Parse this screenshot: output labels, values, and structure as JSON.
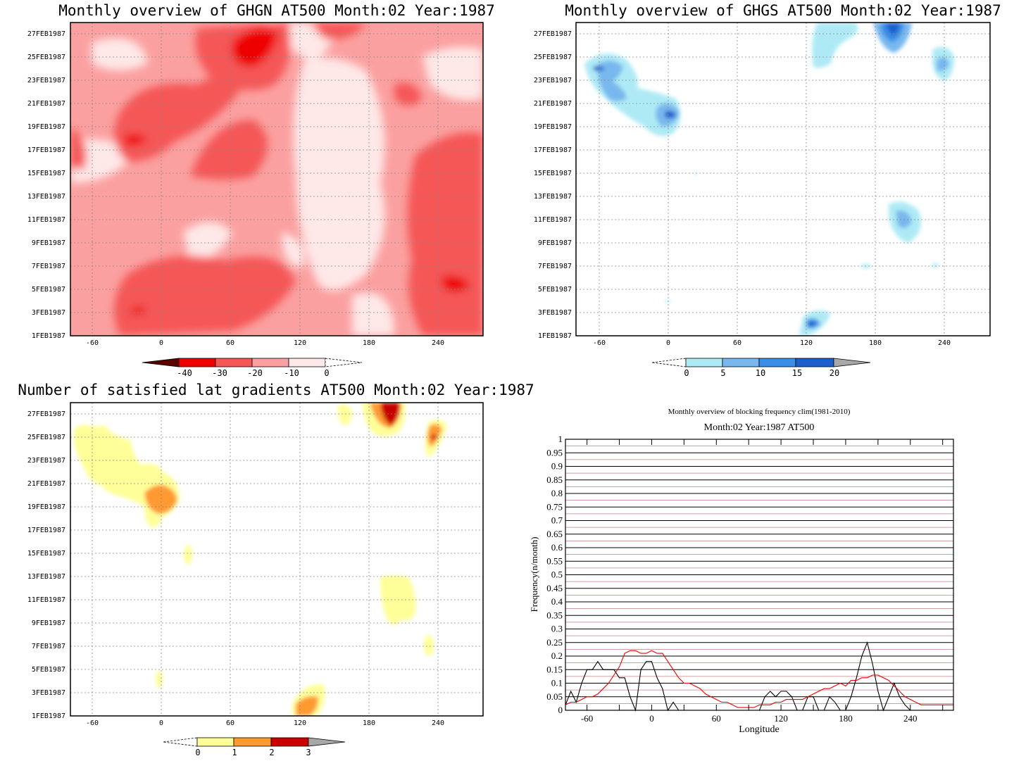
{
  "chart_data": [
    {
      "type": "heatmap",
      "title": "Monthly overview of GHGN AT500 Month:02 Year:1987",
      "x_ticks": [
        "-60",
        "0",
        "60",
        "120",
        "180",
        "240"
      ],
      "y_ticks": [
        "1FEB1987",
        "3FEB1987",
        "5FEB1987",
        "7FEB1987",
        "9FEB1987",
        "11FEB1987",
        "13FEB1987",
        "15FEB1987",
        "17FEB1987",
        "19FEB1987",
        "21FEB1987",
        "23FEB1987",
        "25FEB1987",
        "27FEB1987"
      ],
      "colorbar": {
        "labels": [
          "-40",
          "-30",
          "-20",
          "-10",
          "0"
        ],
        "colors": [
          "#5a0000",
          "#ee0000",
          "#f55757",
          "#fba0a0",
          "#ffe8e8"
        ],
        "extends": "both"
      },
      "grid": true
    },
    {
      "type": "heatmap",
      "title": "Monthly overview of GHGS AT500 Month:02 Year:1987",
      "x_ticks": [
        "-60",
        "0",
        "60",
        "120",
        "180",
        "240"
      ],
      "y_ticks": [
        "1FEB1987",
        "3FEB1987",
        "5FEB1987",
        "7FEB1987",
        "9FEB1987",
        "11FEB1987",
        "13FEB1987",
        "15FEB1987",
        "17FEB1987",
        "19FEB1987",
        "21FEB1987",
        "23FEB1987",
        "25FEB1987",
        "27FEB1987"
      ],
      "colorbar": {
        "labels": [
          "0",
          "5",
          "10",
          "15",
          "20"
        ],
        "colors": [
          "#aeeaf5",
          "#78b8ee",
          "#3b8ee6",
          "#1c5fcc",
          "#a8a8a8"
        ],
        "extends": "both"
      },
      "grid": true
    },
    {
      "type": "heatmap",
      "title": "Number of satisfied lat gradients AT500 Month:02 Year:1987",
      "x_ticks": [
        "-60",
        "0",
        "60",
        "120",
        "180",
        "240"
      ],
      "y_ticks": [
        "1FEB1987",
        "3FEB1987",
        "5FEB1987",
        "7FEB1987",
        "9FEB1987",
        "11FEB1987",
        "13FEB1987",
        "15FEB1987",
        "17FEB1987",
        "19FEB1987",
        "21FEB1987",
        "23FEB1987",
        "25FEB1987",
        "27FEB1987"
      ],
      "colorbar": {
        "labels": [
          "0",
          "1",
          "2",
          "3"
        ],
        "colors": [
          "#ffff99",
          "#ff9a30",
          "#c80000",
          "#a8a8a8"
        ],
        "extends": "both"
      },
      "grid": true
    },
    {
      "type": "line",
      "title": "Monthly overview of blocking frequency clim(1981-2010)",
      "subtitle": "Month:02 Year:1987  AT500",
      "xlabel": "Longitude",
      "ylabel": "Frequency(n/month)",
      "xlim": [
        -80,
        280
      ],
      "ylim": [
        0,
        1
      ],
      "x_ticks": [
        "-60",
        "0",
        "60",
        "120",
        "180",
        "240"
      ],
      "y_ticks": [
        "0",
        "0.05",
        "0.1",
        "0.15",
        "0.2",
        "0.25",
        "0.3",
        "0.35",
        "0.4",
        "0.45",
        "0.5",
        "0.55",
        "0.6",
        "0.65",
        "0.7",
        "0.75",
        "0.8",
        "0.85",
        "0.9",
        "0.95",
        "1"
      ],
      "grid": true,
      "series": [
        {
          "color": "#000000",
          "x": [
            -80,
            -75,
            -70,
            -65,
            -60,
            -55,
            -50,
            -45,
            -40,
            -35,
            -30,
            -25,
            -20,
            -15,
            -10,
            -5,
            0,
            5,
            10,
            15,
            20,
            25,
            30,
            35,
            40,
            45,
            50,
            55,
            60,
            65,
            70,
            75,
            80,
            85,
            90,
            95,
            100,
            105,
            110,
            115,
            120,
            125,
            130,
            135,
            140,
            145,
            150,
            155,
            160,
            165,
            170,
            175,
            180,
            185,
            190,
            195,
            200,
            205,
            210,
            215,
            220,
            225,
            230,
            235,
            240,
            245,
            250,
            255,
            260,
            265,
            270,
            275,
            280
          ],
          "values": [
            0.02,
            0.07,
            0.03,
            0.1,
            0.15,
            0.15,
            0.18,
            0.15,
            0.15,
            0.15,
            0.12,
            0.12,
            0.05,
            0.0,
            0.15,
            0.18,
            0.18,
            0.12,
            0.08,
            0.0,
            0.03,
            0.0,
            0.0,
            0.0,
            0.0,
            0.0,
            0.0,
            0.0,
            0.0,
            0.0,
            0.0,
            0.0,
            0.0,
            0.0,
            0.0,
            0.0,
            0.0,
            0.05,
            0.07,
            0.05,
            0.07,
            0.07,
            0.05,
            0.0,
            0.0,
            0.05,
            0.05,
            0.0,
            0.0,
            0.05,
            0.03,
            0.0,
            0.0,
            0.05,
            0.12,
            0.2,
            0.25,
            0.17,
            0.07,
            0.0,
            0.05,
            0.1,
            0.05,
            0.02,
            0.0,
            0.0,
            0.0,
            0.0,
            0.0,
            0.0,
            0.0,
            0.0,
            0.0
          ]
        },
        {
          "color": "#ee0000",
          "x": [
            -80,
            -75,
            -70,
            -65,
            -60,
            -55,
            -50,
            -45,
            -40,
            -35,
            -30,
            -25,
            -20,
            -15,
            -10,
            -5,
            0,
            5,
            10,
            15,
            20,
            25,
            30,
            35,
            40,
            45,
            50,
            55,
            60,
            65,
            70,
            75,
            80,
            85,
            90,
            95,
            100,
            105,
            110,
            115,
            120,
            125,
            130,
            135,
            140,
            145,
            150,
            155,
            160,
            165,
            170,
            175,
            180,
            185,
            190,
            195,
            200,
            205,
            210,
            215,
            220,
            225,
            230,
            235,
            240,
            245,
            250,
            255,
            260,
            265,
            270,
            275,
            280
          ],
          "values": [
            0.02,
            0.03,
            0.03,
            0.04,
            0.05,
            0.05,
            0.06,
            0.08,
            0.1,
            0.13,
            0.16,
            0.21,
            0.22,
            0.22,
            0.21,
            0.21,
            0.22,
            0.21,
            0.21,
            0.18,
            0.15,
            0.12,
            0.1,
            0.1,
            0.09,
            0.08,
            0.06,
            0.05,
            0.04,
            0.03,
            0.03,
            0.02,
            0.01,
            0.01,
            0.01,
            0.01,
            0.02,
            0.02,
            0.02,
            0.03,
            0.03,
            0.04,
            0.04,
            0.04,
            0.04,
            0.05,
            0.06,
            0.07,
            0.08,
            0.08,
            0.09,
            0.1,
            0.09,
            0.11,
            0.11,
            0.12,
            0.12,
            0.13,
            0.13,
            0.12,
            0.11,
            0.09,
            0.07,
            0.05,
            0.04,
            0.03,
            0.02,
            0.02,
            0.02,
            0.02,
            0.02,
            0.02,
            0.02
          ]
        }
      ]
    }
  ]
}
